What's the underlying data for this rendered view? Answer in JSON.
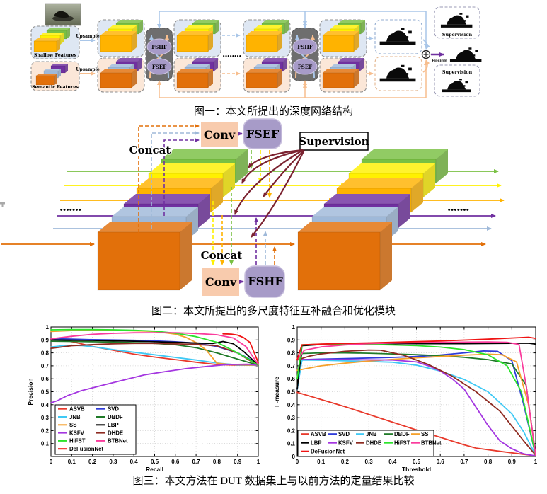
{
  "page": {
    "background": "#FFFFFF"
  },
  "palette": {
    "green": "#79C043",
    "yellow": "#FFF100",
    "amber": "#FFB300",
    "purple": "#7030A0",
    "steel": "#9FB9D9",
    "dorange": "#E2700A",
    "shallow_bg": "#DEE7F3",
    "semantic_bg": "#FBE7D8",
    "module_gray": "#6E6E6E",
    "ellipse_fill": "#A79BC8",
    "conv_fill": "#F8CBAD",
    "cblue": "#A9C6E8",
    "corange": "#F7BE8E",
    "maroon": "#7B2230",
    "dark_maroon": "#5A1E1E",
    "box_border": "#8F8F8F"
  },
  "figure1": {
    "caption": "图一：本文所提出的深度网络结构",
    "labels": {
      "shallow": "Shallow Features",
      "semantic": "Semantic Features",
      "upsample": "Upsample",
      "fshf": "FSHF",
      "fsef": "FSEF",
      "supervision": "Supervision",
      "fusion": "Fusion",
      "dots": "••••••••"
    }
  },
  "figure2": {
    "caption": "图二：本文所提出的多尺度特征互补融合和优化模块",
    "labels": {
      "concat": "Concat",
      "conv": "Conv",
      "fsef": "FSEF",
      "fshf": "FSHF",
      "supervision": "Supervision",
      "dots": "•••••••"
    }
  },
  "figure3": {
    "caption": "图三：本文方法在 DUT 数据集上与以前方法的定量结果比较"
  },
  "chart_data": [
    {
      "name": "precision-recall",
      "type": "line",
      "title": "",
      "xlabel": "Recall",
      "ylabel": "Precision",
      "xlim": [
        0,
        1
      ],
      "ylim": [
        0,
        1
      ],
      "xticks": [
        0,
        0.1,
        0.2,
        0.3,
        0.4,
        0.5,
        0.6,
        0.7,
        0.8,
        0.9,
        1
      ],
      "yticks": [
        0.1,
        0.2,
        0.3,
        0.4,
        0.5,
        0.6,
        0.7,
        0.8,
        0.9,
        1
      ],
      "grid": true,
      "legend_position": "lower-left",
      "legend_rows": [
        [
          "ASVB",
          "SVD"
        ],
        [
          "JNB",
          "DBDF"
        ],
        [
          "SS",
          "LBP"
        ],
        [
          "KSFV",
          "DHDE"
        ],
        [
          "HiFST",
          "BTBNet"
        ],
        [
          "DeFusionNet"
        ]
      ],
      "series": [
        {
          "name": "ASVB",
          "color": "#E8392B",
          "x": [
            0,
            0.05,
            0.12,
            0.2,
            0.3,
            0.4,
            0.5,
            0.6,
            0.7,
            0.8,
            0.9,
            1
          ],
          "y": [
            0.905,
            0.905,
            0.88,
            0.85,
            0.82,
            0.79,
            0.768,
            0.748,
            0.728,
            0.71,
            0.705,
            0.705
          ]
        },
        {
          "name": "SVD",
          "color": "#2F3BD9",
          "x": [
            0,
            0.1,
            0.2,
            0.3,
            0.4,
            0.5,
            0.6,
            0.7,
            0.8,
            0.9,
            0.95,
            1
          ],
          "y": [
            0.91,
            0.906,
            0.902,
            0.9,
            0.897,
            0.893,
            0.886,
            0.875,
            0.85,
            0.8,
            0.76,
            0.705
          ]
        },
        {
          "name": "JNB",
          "color": "#3FC9F5",
          "x": [
            0,
            0.07,
            0.15,
            0.2,
            0.3,
            0.4,
            0.5,
            0.6,
            0.7,
            0.8,
            0.9,
            1
          ],
          "y": [
            0.845,
            0.858,
            0.856,
            0.848,
            0.825,
            0.805,
            0.785,
            0.765,
            0.745,
            0.722,
            0.707,
            0.705
          ]
        },
        {
          "name": "DBDF",
          "color": "#1F7A28",
          "x": [
            0,
            0.1,
            0.2,
            0.3,
            0.4,
            0.5,
            0.6,
            0.7,
            0.8,
            0.9,
            1
          ],
          "y": [
            0.89,
            0.888,
            0.886,
            0.883,
            0.879,
            0.873,
            0.863,
            0.84,
            0.8,
            0.752,
            0.705
          ]
        },
        {
          "name": "SS",
          "color": "#F5A02B",
          "x": [
            0,
            0.1,
            0.2,
            0.3,
            0.4,
            0.5,
            0.6,
            0.65,
            0.7,
            0.75,
            0.8,
            0.85,
            0.9,
            1
          ],
          "y": [
            0.965,
            0.972,
            0.974,
            0.974,
            0.971,
            0.966,
            0.945,
            0.92,
            0.88,
            0.82,
            0.72,
            0.712,
            0.71,
            0.705
          ]
        },
        {
          "name": "LBP",
          "color": "#000000",
          "x": [
            0,
            0.1,
            0.2,
            0.3,
            0.4,
            0.5,
            0.6,
            0.7,
            0.78,
            0.83,
            0.88,
            0.93,
            1
          ],
          "y": [
            0.9,
            0.898,
            0.896,
            0.893,
            0.89,
            0.886,
            0.882,
            0.876,
            0.872,
            0.888,
            0.87,
            0.81,
            0.705
          ]
        },
        {
          "name": "KSFV",
          "color": "#A436E0",
          "x": [
            0,
            0.03,
            0.08,
            0.15,
            0.25,
            0.35,
            0.45,
            0.55,
            0.65,
            0.75,
            0.85,
            0.95,
            1
          ],
          "y": [
            0.415,
            0.43,
            0.47,
            0.51,
            0.55,
            0.59,
            0.63,
            0.655,
            0.678,
            0.695,
            0.71,
            0.712,
            0.705
          ]
        },
        {
          "name": "DHDE",
          "color": "#8E2B21",
          "x": [
            0,
            0.1,
            0.2,
            0.3,
            0.4,
            0.5,
            0.6,
            0.7,
            0.8,
            0.9,
            0.95,
            1
          ],
          "y": [
            0.835,
            0.855,
            0.864,
            0.87,
            0.873,
            0.873,
            0.87,
            0.865,
            0.855,
            0.8,
            0.75,
            0.705
          ]
        },
        {
          "name": "HiFST",
          "color": "#2CE32C",
          "x": [
            0,
            0.1,
            0.2,
            0.3,
            0.4,
            0.5,
            0.6,
            0.7,
            0.8,
            0.9,
            0.95,
            1
          ],
          "y": [
            0.978,
            0.98,
            0.98,
            0.978,
            0.975,
            0.968,
            0.952,
            0.925,
            0.882,
            0.8,
            0.755,
            0.705
          ]
        },
        {
          "name": "BTBNet",
          "color": "#FA3C9D",
          "x": [
            0,
            0.1,
            0.2,
            0.3,
            0.4,
            0.5,
            0.6,
            0.7,
            0.8,
            0.88,
            0.94,
            1
          ],
          "y": [
            0.908,
            0.928,
            0.943,
            0.951,
            0.955,
            0.956,
            0.955,
            0.95,
            0.94,
            0.915,
            0.85,
            0.71
          ]
        },
        {
          "name": "DeFusionNet",
          "color": "#EF1313",
          "x": [
            0.83,
            0.87,
            0.9,
            0.93,
            0.96,
            1
          ],
          "y": [
            0.947,
            0.945,
            0.937,
            0.917,
            0.88,
            0.725
          ]
        }
      ]
    },
    {
      "name": "f-measure-threshold",
      "type": "line",
      "title": "",
      "xlabel": "Threshold",
      "ylabel": "F-measure",
      "xlim": [
        0,
        1
      ],
      "ylim": [
        0,
        1
      ],
      "xticks": [
        0,
        0.1,
        0.2,
        0.3,
        0.4,
        0.5,
        0.6,
        0.7,
        0.8,
        0.9,
        1
      ],
      "yticks": [
        0,
        0.1,
        0.2,
        0.3,
        0.4,
        0.5,
        0.6,
        0.7,
        0.8,
        0.9,
        1
      ],
      "grid": true,
      "legend_position": "lower-left",
      "legend_rows": [
        [
          "ASVB",
          "SVD",
          "JNB",
          "DBDF",
          "SS"
        ],
        [
          "LBP",
          "KSFV",
          "DHDE",
          "HiFST",
          "BTBNet"
        ],
        [
          "DeFusionNet"
        ]
      ],
      "series": [
        {
          "name": "ASVB",
          "color": "#E8392B",
          "x": [
            0,
            0.1,
            0.2,
            0.3,
            0.4,
            0.5,
            0.6,
            0.7,
            0.75,
            0.85,
            1
          ],
          "y": [
            0.495,
            0.44,
            0.385,
            0.325,
            0.265,
            0.205,
            0.148,
            0.09,
            0.065,
            0.04,
            0.005
          ]
        },
        {
          "name": "SVD",
          "color": "#2F3BD9",
          "x": [
            0,
            0.02,
            0.1,
            0.2,
            0.3,
            0.4,
            0.5,
            0.6,
            0.7,
            0.78,
            0.84,
            0.9,
            0.95,
            1
          ],
          "y": [
            0.52,
            0.748,
            0.752,
            0.756,
            0.76,
            0.765,
            0.772,
            0.783,
            0.8,
            0.815,
            0.812,
            0.74,
            0.4,
            0.01
          ]
        },
        {
          "name": "JNB",
          "color": "#3FC9F5",
          "x": [
            0,
            0.02,
            0.1,
            0.2,
            0.3,
            0.4,
            0.5,
            0.6,
            0.7,
            0.8,
            0.9,
            0.95,
            1
          ],
          "y": [
            0.52,
            0.745,
            0.743,
            0.738,
            0.734,
            0.728,
            0.705,
            0.66,
            0.595,
            0.5,
            0.33,
            0.19,
            0.01
          ]
        },
        {
          "name": "DBDF",
          "color": "#1F7A28",
          "x": [
            0,
            0.02,
            0.1,
            0.2,
            0.3,
            0.4,
            0.5,
            0.6,
            0.7,
            0.8,
            0.9,
            0.96,
            1
          ],
          "y": [
            0.6,
            0.795,
            0.8,
            0.8,
            0.797,
            0.792,
            0.786,
            0.778,
            0.766,
            0.748,
            0.715,
            0.55,
            0.01
          ]
        },
        {
          "name": "SS",
          "color": "#F5A02B",
          "x": [
            0,
            0.1,
            0.2,
            0.3,
            0.4,
            0.5,
            0.6,
            0.7,
            0.8,
            0.86,
            0.92,
            0.97,
            1
          ],
          "y": [
            0.665,
            0.7,
            0.72,
            0.737,
            0.75,
            0.762,
            0.772,
            0.782,
            0.79,
            0.785,
            0.73,
            0.4,
            0.01
          ]
        },
        {
          "name": "LBP",
          "color": "#000000",
          "x": [
            0,
            0.02,
            0.1,
            0.2,
            0.3,
            0.4,
            0.5,
            0.6,
            0.7,
            0.8,
            0.9,
            0.97,
            1
          ],
          "y": [
            0.52,
            0.855,
            0.865,
            0.868,
            0.87,
            0.871,
            0.871,
            0.871,
            0.871,
            0.872,
            0.874,
            0.875,
            0.868
          ]
        },
        {
          "name": "KSFV",
          "color": "#A436E0",
          "x": [
            0,
            0.2,
            0.4,
            0.5,
            0.55,
            0.6,
            0.65,
            0.7,
            0.75,
            0.8,
            0.85,
            0.9,
            0.95,
            1
          ],
          "y": [
            0.748,
            0.748,
            0.745,
            0.73,
            0.7,
            0.66,
            0.6,
            0.52,
            0.38,
            0.24,
            0.12,
            0.06,
            0.02,
            0.005
          ]
        },
        {
          "name": "DHDE",
          "color": "#8E2B21",
          "x": [
            0,
            0.05,
            0.1,
            0.2,
            0.3,
            0.35,
            0.45,
            0.55,
            0.65,
            0.75,
            0.85,
            0.95,
            1
          ],
          "y": [
            0.745,
            0.775,
            0.792,
            0.812,
            0.822,
            0.82,
            0.78,
            0.71,
            0.62,
            0.5,
            0.35,
            0.12,
            0.01
          ]
        },
        {
          "name": "HiFST",
          "color": "#2CE32C",
          "x": [
            0,
            0.02,
            0.1,
            0.2,
            0.3,
            0.4,
            0.5,
            0.6,
            0.7,
            0.8,
            0.88,
            0.94,
            1
          ],
          "y": [
            0.6,
            0.862,
            0.867,
            0.867,
            0.865,
            0.862,
            0.856,
            0.845,
            0.825,
            0.785,
            0.7,
            0.5,
            0.01
          ]
        },
        {
          "name": "BTBNet",
          "color": "#FA3C9D",
          "x": [
            0,
            0.03,
            0.1,
            0.2,
            0.3,
            0.4,
            0.5,
            0.6,
            0.7,
            0.8,
            0.88,
            0.93,
            0.96,
            1
          ],
          "y": [
            0.748,
            0.82,
            0.846,
            0.862,
            0.871,
            0.876,
            0.879,
            0.881,
            0.883,
            0.884,
            0.882,
            0.865,
            0.55,
            0.01
          ]
        },
        {
          "name": "DeFusionNet",
          "color": "#EF1313",
          "x": [
            0,
            0.02,
            0.1,
            0.2,
            0.3,
            0.4,
            0.5,
            0.6,
            0.7,
            0.8,
            0.9,
            0.97,
            1
          ],
          "y": [
            0.75,
            0.862,
            0.868,
            0.873,
            0.877,
            0.882,
            0.887,
            0.892,
            0.899,
            0.906,
            0.915,
            0.921,
            0.912
          ]
        }
      ]
    }
  ]
}
